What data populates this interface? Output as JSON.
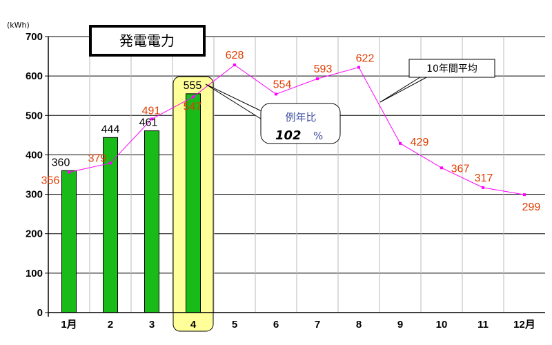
{
  "chart_data": {
    "type": "bar",
    "title": "発電電力",
    "unit_label": "(kWh)",
    "categories": [
      "1月",
      "2",
      "3",
      "4",
      "5",
      "6",
      "7",
      "8",
      "9",
      "10",
      "11",
      "12月"
    ],
    "ylim": [
      0,
      700
    ],
    "yticks": [
      0,
      100,
      200,
      300,
      400,
      500,
      600,
      700
    ],
    "grid": true,
    "highlight_category": "4",
    "series": [
      {
        "values": [
          360,
          444,
          461,
          555,
          null,
          null,
          null,
          null,
          null,
          null,
          null,
          null
        ]
      },
      {
        "name": "10年間平均",
        "values": [
          356,
          379,
          491,
          547,
          628,
          554,
          593,
          622,
          429,
          367,
          317,
          299
        ]
      }
    ],
    "bar_labels": [
      "360",
      "444",
      "461",
      "555"
    ],
    "avg_labels": [
      "356",
      "379",
      "491",
      "547",
      "628",
      "554",
      "593",
      "622",
      "429",
      "367",
      "317",
      "299"
    ],
    "ratio": {
      "label": "例年比",
      "value": "102",
      "unit": "%"
    }
  },
  "colors": {
    "bar": "#18bb18",
    "bar_outline": "#000000",
    "avg_line": "#ff00ff",
    "avg_label": "#e03c00",
    "highlight_fill": "#ffff99",
    "grid": "#000000",
    "ratio_text": "#4050a0"
  }
}
